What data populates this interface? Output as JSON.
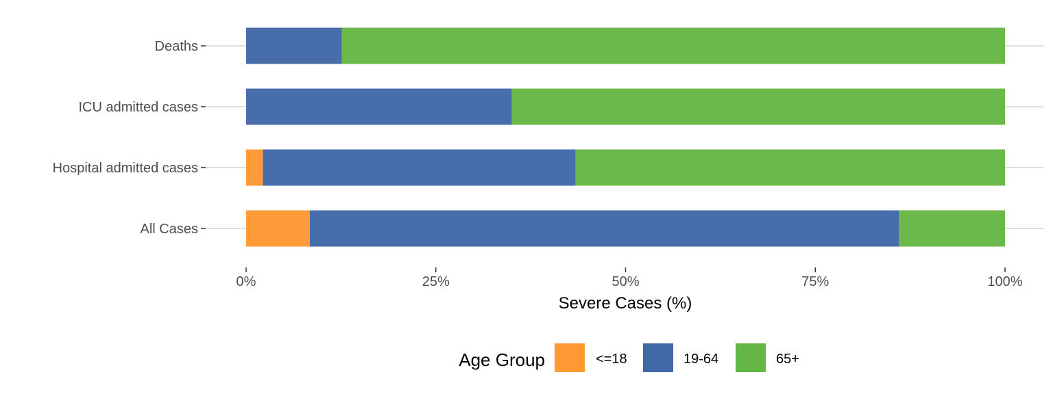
{
  "chart_data": {
    "type": "bar",
    "orientation": "horizontal",
    "stacked": true,
    "percent_stacked": true,
    "categories": [
      "Deaths",
      "ICU admitted cases",
      "Hospital admitted cases",
      "All Cases"
    ],
    "series": [
      {
        "name": "<=18",
        "color": "#ff9933",
        "values": [
          0,
          0,
          2.2,
          8.4
        ]
      },
      {
        "name": "19-64",
        "color": "#4169a8",
        "values": [
          12.6,
          35.0,
          41.2,
          77.6
        ]
      },
      {
        "name": "65+",
        "color": "#66b645",
        "values": [
          87.4,
          65.0,
          56.6,
          14.0
        ]
      }
    ],
    "xlabel": "Severe Cases (%)",
    "ylabel": "",
    "xlim": [
      0,
      100
    ],
    "x_ticks": [
      0,
      25,
      50,
      75,
      100
    ],
    "x_tick_labels": [
      "0%",
      "25%",
      "50%",
      "75%",
      "100%"
    ],
    "grid": true,
    "legend": {
      "title": "Age Group",
      "position": "bottom"
    }
  }
}
